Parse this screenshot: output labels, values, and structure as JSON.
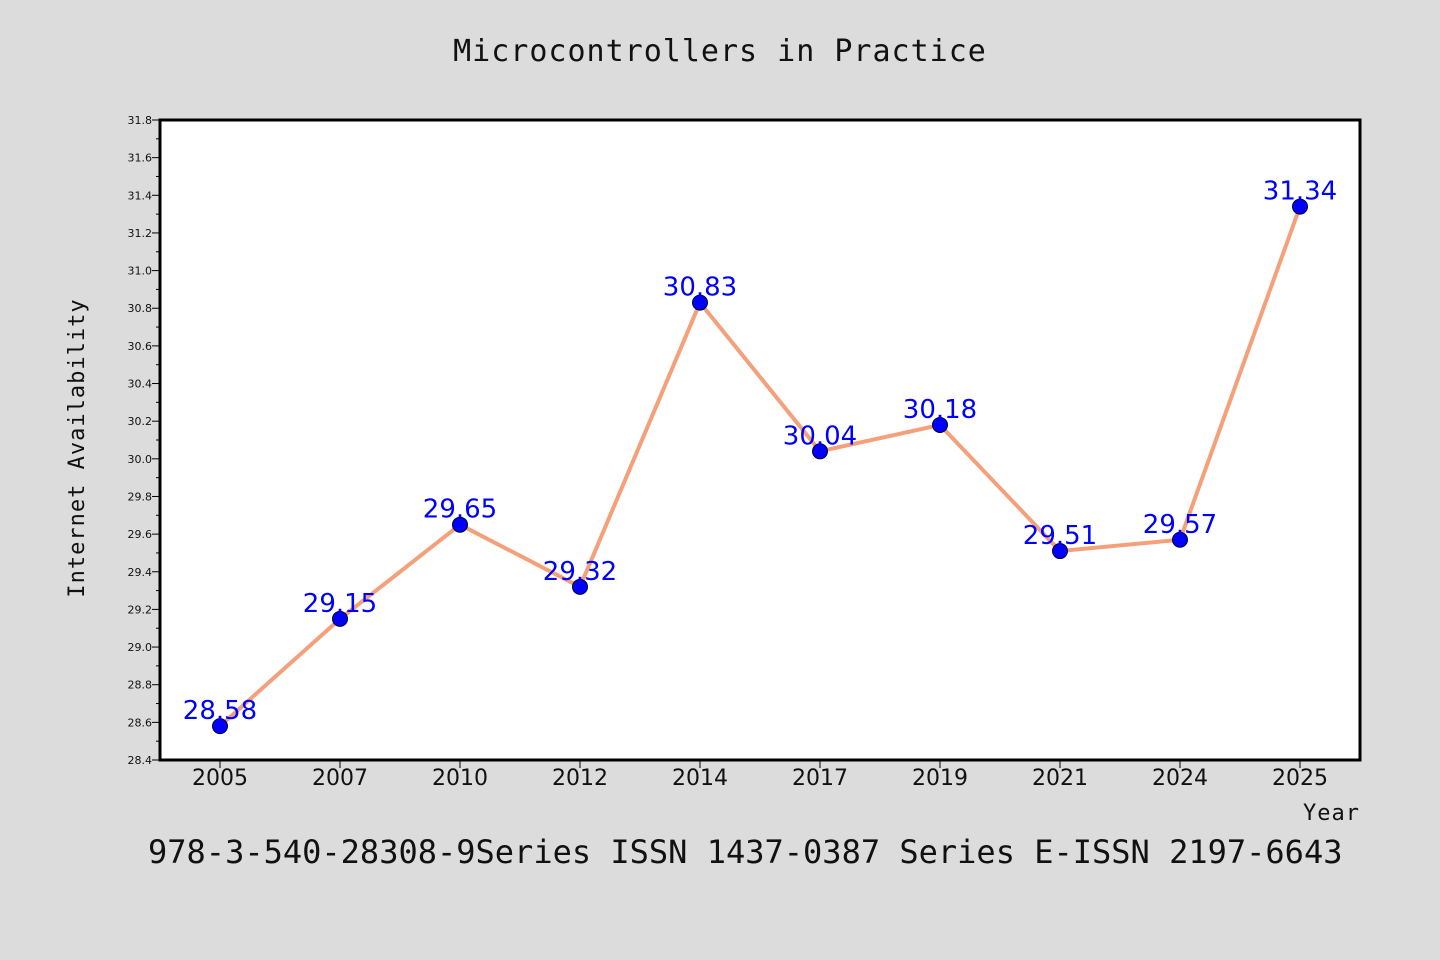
{
  "chart_data": {
    "type": "line",
    "title": "Microcontrollers in Practice",
    "xlabel": "Year",
    "ylabel": "Internet Availability",
    "categories": [
      "2005",
      "2007",
      "2010",
      "2012",
      "2014",
      "2017",
      "2019",
      "2021",
      "2024",
      "2025"
    ],
    "series": [
      {
        "values": [
          28.58,
          29.15,
          29.65,
          29.32,
          30.83,
          30.04,
          30.18,
          29.51,
          29.57,
          31.34
        ]
      }
    ],
    "data_labels": [
      "28.58",
      "29.15",
      "29.65",
      "29.32",
      "30.83",
      "30.04",
      "30.18",
      "29.51",
      "29.57",
      "31.34"
    ],
    "ylim": [
      28.4,
      31.8
    ],
    "yticks": [
      "28.4",
      "28.6",
      "28.8",
      "29.0",
      "29.2",
      "29.4",
      "29.6",
      "29.8",
      "30.0",
      "30.2",
      "30.4",
      "30.6",
      "30.8",
      "31.0",
      "31.2",
      "31.4",
      "31.6",
      "31.8"
    ],
    "grid": false,
    "line_color": "#f4a07a",
    "marker_color": "#0000ff",
    "label_color": "#0000ff"
  },
  "footer": {
    "text": "978-3-540-28308-9Series ISSN 1437-0387 Series E-ISSN 2197-6643"
  }
}
